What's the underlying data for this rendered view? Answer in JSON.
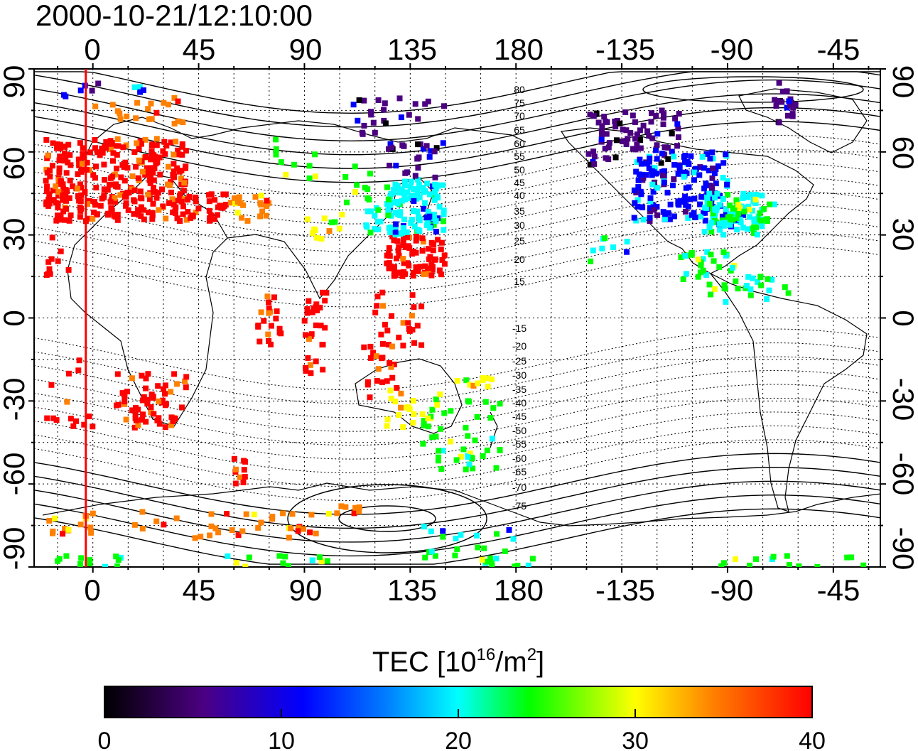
{
  "title": "2000-10-21/12:10:00",
  "map": {
    "top_axis_labels": [
      "0",
      "45",
      "90",
      "135",
      "180",
      "-135",
      "-90",
      "-45"
    ],
    "bottom_axis_labels": [
      "0",
      "45",
      "90",
      "135",
      "180",
      "-135",
      "-90",
      "-45"
    ],
    "left_axis_labels": [
      "90",
      "60",
      "30",
      "0",
      "-30",
      "-60",
      "-90"
    ],
    "right_axis_labels": [
      "90",
      "60",
      "30",
      "0",
      "-30",
      "-60",
      "-90"
    ],
    "contour_labels": [
      "80",
      "75",
      "70",
      "65",
      "60",
      "55",
      "50",
      "45",
      "40",
      "35",
      "30",
      "25",
      "20",
      "15",
      "-15",
      "-20",
      "-25",
      "-30",
      "-35",
      "-40",
      "-45",
      "-50",
      "-55",
      "-60",
      "-65",
      "-70",
      "-75"
    ],
    "lon_range": [
      -25,
      335
    ],
    "lat_range": [
      -90,
      90
    ],
    "grid": true,
    "marker_line_lon": -3,
    "marker_line_color": "#ff0000"
  },
  "colorbar": {
    "title_main": "TEC  [10",
    "title_exp1": "16",
    "title_mid": "/m",
    "title_exp2": "2",
    "title_end": "]",
    "tick_labels": [
      "0",
      "10",
      "20",
      "30",
      "40"
    ],
    "colors": [
      "#000000",
      "#4b0082",
      "#0000ff",
      "#00ffff",
      "#00ff00",
      "#ffff00",
      "#ff8000",
      "#ff0000"
    ],
    "range": [
      0,
      40
    ]
  }
}
